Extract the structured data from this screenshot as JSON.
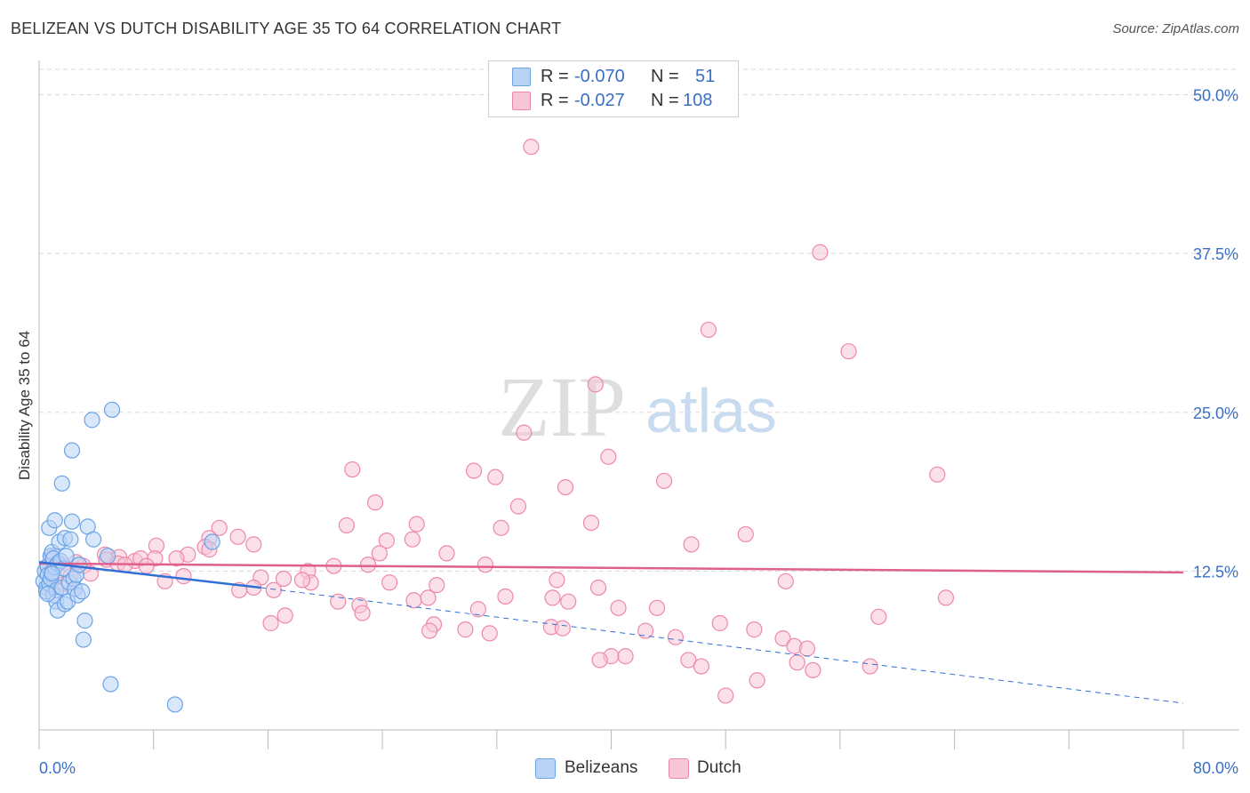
{
  "title": "BELIZEAN VS DUTCH DISABILITY AGE 35 TO 64 CORRELATION CHART",
  "source": "Source: ZipAtlas.com",
  "watermark": {
    "zip": "ZIP",
    "atlas": "atlas"
  },
  "colors": {
    "blue": "#6aa3e8",
    "blue_fill": "#b9d3f5",
    "blue_line": "#2f6fd6",
    "pink": "#ee88aa",
    "pink_fill": "#f8c7d7",
    "pink_line": "#e0608c",
    "axis_label": "#3a6fc4",
    "grid": "#d8d8d8"
  },
  "legend": {
    "rows": [
      {
        "r_label": "R =",
        "r_value": "-0.070",
        "n_label": "N =",
        "n_value": "51"
      },
      {
        "r_label": "R =",
        "r_value": "-0.027",
        "n_label": "N =",
        "n_value": "108"
      }
    ]
  },
  "bottom_legend": {
    "items": [
      "Belizeans",
      "Dutch"
    ]
  },
  "chart_data": {
    "type": "scatter",
    "title": "BELIZEAN VS DUTCH DISABILITY AGE 35 TO 64 CORRELATION CHART",
    "xlabel": "",
    "ylabel": "Disability Age 35 to 64",
    "xlim": [
      0,
      80
    ],
    "ylim": [
      0,
      52
    ],
    "x_tick_labels": [
      "0.0%",
      "80.0%"
    ],
    "y_ticks": [
      12.5,
      25.0,
      37.5,
      50.0
    ],
    "y_tick_labels": [
      "12.5%",
      "25.0%",
      "37.5%",
      "50.0%"
    ],
    "series": [
      {
        "name": "Belizeans",
        "r": -0.07,
        "n": 51,
        "trend": {
          "x0": 0,
          "y0": 13.2,
          "x1": 15.5,
          "y1": 11.2,
          "dashed_to_x": 80,
          "dashed_to_y": 2.1
        },
        "points": [
          [
            0.3,
            11.7
          ],
          [
            0.4,
            12.5
          ],
          [
            0.5,
            11.2
          ],
          [
            0.5,
            10.9
          ],
          [
            0.6,
            12.9
          ],
          [
            0.6,
            12.2
          ],
          [
            0.7,
            15.9
          ],
          [
            0.7,
            11.5
          ],
          [
            0.8,
            13.7
          ],
          [
            0.8,
            11.9
          ],
          [
            0.9,
            14.0
          ],
          [
            0.9,
            12.4
          ],
          [
            1.0,
            13.5
          ],
          [
            1.0,
            10.6
          ],
          [
            1.1,
            12.8
          ],
          [
            1.1,
            16.5
          ],
          [
            1.2,
            11.0
          ],
          [
            1.2,
            10.1
          ],
          [
            1.3,
            9.4
          ],
          [
            1.3,
            13.1
          ],
          [
            1.4,
            14.8
          ],
          [
            1.5,
            13.3
          ],
          [
            1.6,
            19.4
          ],
          [
            1.6,
            11.2
          ],
          [
            1.7,
            12.7
          ],
          [
            1.8,
            9.9
          ],
          [
            1.8,
            15.1
          ],
          [
            1.9,
            13.7
          ],
          [
            2.0,
            10.1
          ],
          [
            2.1,
            11.6
          ],
          [
            2.2,
            15.0
          ],
          [
            2.3,
            16.4
          ],
          [
            2.4,
            11.9
          ],
          [
            2.5,
            11.1
          ],
          [
            2.6,
            12.2
          ],
          [
            2.7,
            10.6
          ],
          [
            2.8,
            13.0
          ],
          [
            3.0,
            10.9
          ],
          [
            3.2,
            8.6
          ],
          [
            3.4,
            16.0
          ],
          [
            3.7,
            24.4
          ],
          [
            3.8,
            15.0
          ],
          [
            3.1,
            7.1
          ],
          [
            2.3,
            22.0
          ],
          [
            0.9,
            12.3
          ],
          [
            0.6,
            10.7
          ],
          [
            5.0,
            3.6
          ],
          [
            4.8,
            13.7
          ],
          [
            5.1,
            25.2
          ],
          [
            9.5,
            2.0
          ],
          [
            12.1,
            14.8
          ]
        ]
      },
      {
        "name": "Dutch",
        "r": -0.027,
        "n": 108,
        "trend": {
          "x0": 0,
          "y0": 13.1,
          "x1": 80,
          "y1": 12.4
        },
        "points": [
          [
            34.4,
            45.9
          ],
          [
            54.6,
            37.6
          ],
          [
            46.8,
            31.5
          ],
          [
            56.6,
            29.8
          ],
          [
            38.9,
            27.2
          ],
          [
            33.9,
            23.4
          ],
          [
            39.8,
            21.5
          ],
          [
            21.9,
            20.5
          ],
          [
            30.4,
            20.4
          ],
          [
            31.9,
            19.9
          ],
          [
            62.8,
            20.1
          ],
          [
            43.7,
            19.6
          ],
          [
            36.8,
            19.1
          ],
          [
            23.5,
            17.9
          ],
          [
            33.5,
            17.6
          ],
          [
            26.4,
            16.2
          ],
          [
            38.6,
            16.3
          ],
          [
            21.5,
            16.1
          ],
          [
            32.3,
            15.9
          ],
          [
            12.6,
            15.9
          ],
          [
            13.9,
            15.2
          ],
          [
            11.9,
            15.1
          ],
          [
            24.3,
            14.9
          ],
          [
            26.1,
            15.0
          ],
          [
            49.4,
            15.4
          ],
          [
            45.6,
            14.6
          ],
          [
            15.0,
            14.6
          ],
          [
            8.2,
            14.5
          ],
          [
            11.6,
            14.4
          ],
          [
            11.9,
            14.2
          ],
          [
            23.8,
            13.9
          ],
          [
            28.5,
            13.9
          ],
          [
            10.4,
            13.8
          ],
          [
            4.6,
            13.8
          ],
          [
            5.6,
            13.6
          ],
          [
            4.7,
            13.4
          ],
          [
            6.7,
            13.3
          ],
          [
            7.1,
            13.5
          ],
          [
            8.1,
            13.5
          ],
          [
            9.6,
            13.5
          ],
          [
            3.1,
            12.9
          ],
          [
            5.5,
            13.1
          ],
          [
            7.5,
            12.9
          ],
          [
            6.0,
            13.0
          ],
          [
            10.1,
            12.1
          ],
          [
            15.5,
            12.0
          ],
          [
            15.0,
            11.2
          ],
          [
            17.1,
            11.9
          ],
          [
            18.8,
            12.5
          ],
          [
            19.0,
            11.6
          ],
          [
            20.6,
            12.9
          ],
          [
            18.4,
            11.8
          ],
          [
            24.5,
            11.6
          ],
          [
            27.8,
            11.4
          ],
          [
            31.2,
            13.0
          ],
          [
            36.2,
            11.8
          ],
          [
            39.1,
            11.2
          ],
          [
            52.2,
            11.7
          ],
          [
            8.8,
            11.7
          ],
          [
            3.6,
            12.3
          ],
          [
            2.2,
            12.1
          ],
          [
            1.8,
            11.5
          ],
          [
            14.0,
            11.0
          ],
          [
            16.4,
            11.0
          ],
          [
            20.9,
            10.1
          ],
          [
            22.4,
            9.8
          ],
          [
            26.2,
            10.2
          ],
          [
            27.2,
            10.4
          ],
          [
            30.7,
            9.5
          ],
          [
            32.6,
            10.5
          ],
          [
            35.9,
            10.4
          ],
          [
            37.0,
            10.1
          ],
          [
            40.5,
            9.6
          ],
          [
            43.2,
            9.6
          ],
          [
            22.6,
            9.2
          ],
          [
            17.2,
            9.0
          ],
          [
            16.2,
            8.4
          ],
          [
            27.6,
            8.3
          ],
          [
            29.8,
            7.9
          ],
          [
            27.3,
            7.8
          ],
          [
            31.5,
            7.6
          ],
          [
            35.8,
            8.1
          ],
          [
            36.6,
            8.0
          ],
          [
            47.6,
            8.4
          ],
          [
            50.0,
            7.9
          ],
          [
            42.4,
            7.8
          ],
          [
            44.5,
            7.3
          ],
          [
            58.7,
            8.9
          ],
          [
            52.0,
            7.2
          ],
          [
            52.8,
            6.6
          ],
          [
            53.7,
            6.4
          ],
          [
            40.0,
            5.8
          ],
          [
            41.0,
            5.8
          ],
          [
            39.2,
            5.5
          ],
          [
            45.4,
            5.5
          ],
          [
            53.0,
            5.3
          ],
          [
            46.3,
            5.0
          ],
          [
            54.1,
            4.7
          ],
          [
            58.1,
            5.0
          ],
          [
            48.0,
            2.7
          ],
          [
            50.2,
            3.9
          ],
          [
            63.4,
            10.4
          ],
          [
            0.9,
            13.6
          ],
          [
            1.4,
            13.1
          ],
          [
            0.6,
            12.8
          ],
          [
            2.6,
            13.2
          ],
          [
            1.1,
            12.0
          ],
          [
            23.0,
            13.0
          ]
        ]
      }
    ]
  }
}
